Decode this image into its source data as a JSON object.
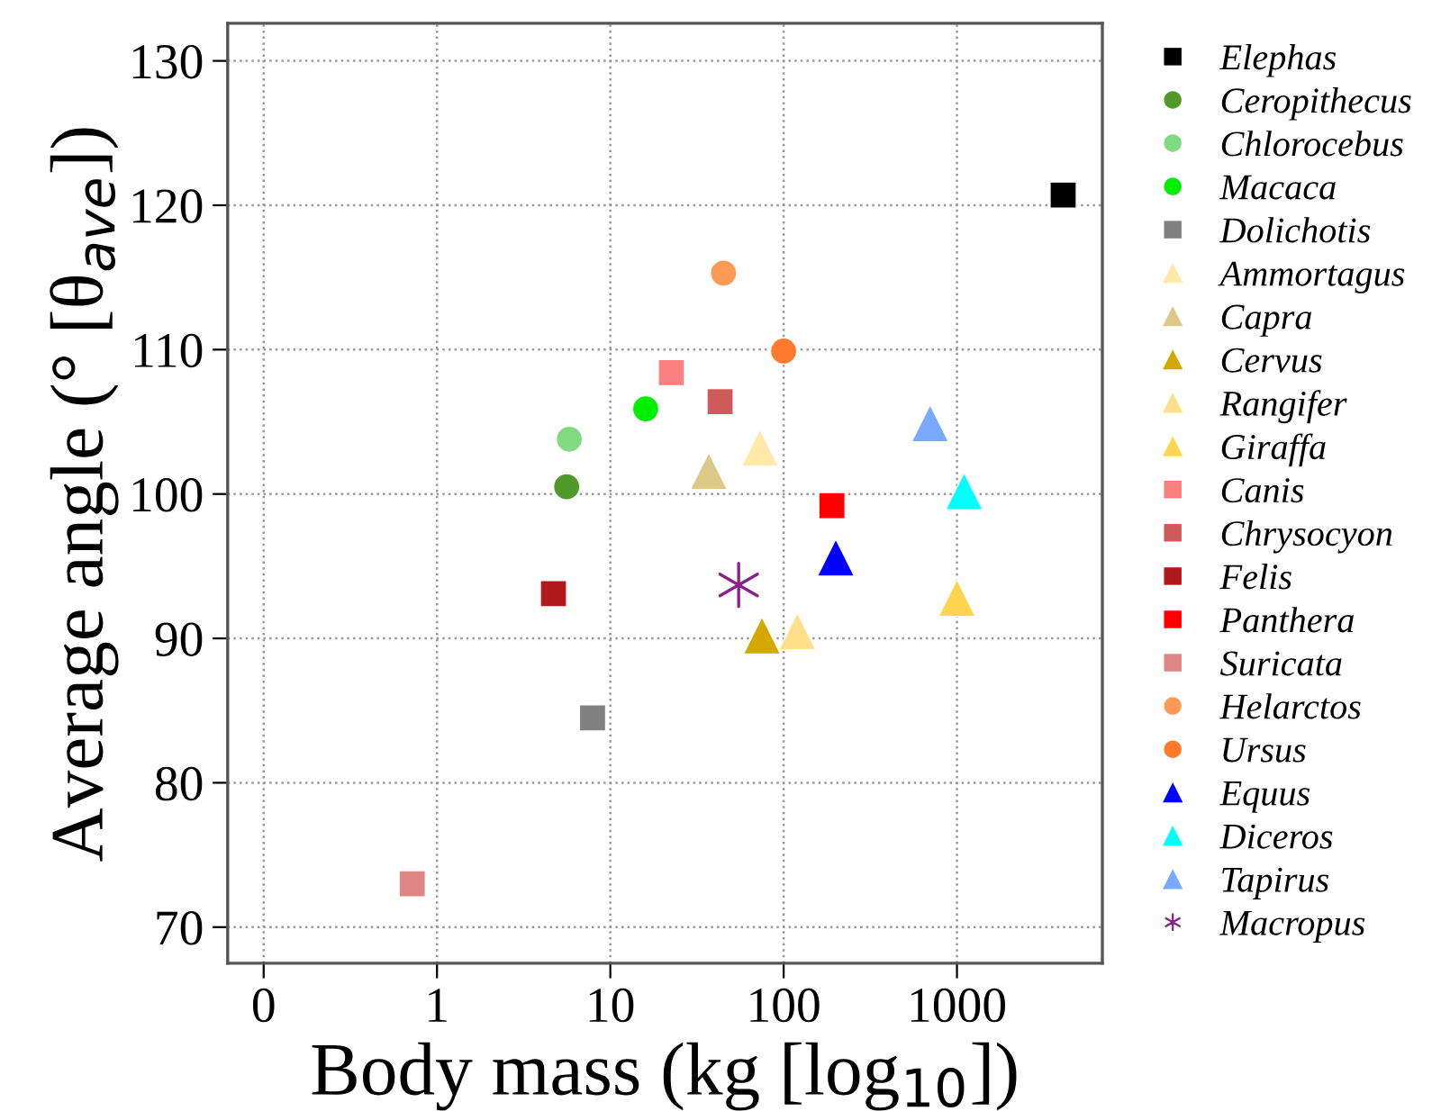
{
  "chart_data": {
    "type": "scatter",
    "xlabel": "Body mass (kg [log$_{10}$])",
    "ylabel": "Average angle (° [θ$_{ave}$])",
    "log": "x",
    "xlim": [
      0.062,
      6900
    ],
    "xticks": [
      {
        "value": 0.1,
        "label": "0"
      },
      1,
      10,
      100,
      1000
    ],
    "ylim": [
      67.5,
      132.6
    ],
    "yticks": [
      70,
      80,
      90,
      100,
      110,
      120,
      130
    ],
    "grid": true,
    "legend": "right",
    "series": [
      {
        "name": "Elephas",
        "color": "#000000",
        "marker": "square",
        "x": [
          4100
        ],
        "values": [
          120.7
        ]
      },
      {
        "name": "Ceropithecus",
        "color": "#4f9a2a",
        "marker": "circle",
        "x": [
          5.6
        ],
        "values": [
          100.5
        ]
      },
      {
        "name": "Chlorocebus",
        "color": "#80da80",
        "marker": "circle",
        "x": [
          5.8
        ],
        "values": [
          103.8
        ]
      },
      {
        "name": "Macaca",
        "color": "#00ee00",
        "marker": "circle",
        "x": [
          16
        ],
        "values": [
          105.9
        ]
      },
      {
        "name": "Dolichotis",
        "color": "#808080",
        "marker": "square",
        "x": [
          7.9
        ],
        "values": [
          84.5
        ]
      },
      {
        "name": "Ammortagus",
        "color": "#ffe9a8",
        "marker": "triangle",
        "x": [
          73
        ],
        "values": [
          103.2
        ]
      },
      {
        "name": "Capra",
        "color": "#dcc98a",
        "marker": "triangle",
        "x": [
          37
        ],
        "values": [
          101.6
        ]
      },
      {
        "name": "Cervus",
        "color": "#d4a800",
        "marker": "triangle",
        "x": [
          75
        ],
        "values": [
          90.2
        ]
      },
      {
        "name": "Rangifer",
        "color": "#ffe08a",
        "marker": "triangle",
        "x": [
          120
        ],
        "values": [
          90.5
        ]
      },
      {
        "name": "Giraffa",
        "color": "#ffd54f",
        "marker": "triangle",
        "x": [
          1000
        ],
        "values": [
          92.8
        ]
      },
      {
        "name": "Canis",
        "color": "#fa8080",
        "marker": "square",
        "x": [
          22.5
        ],
        "values": [
          108.4
        ]
      },
      {
        "name": "Chrysocyon",
        "color": "#d05a5a",
        "marker": "square",
        "x": [
          43
        ],
        "values": [
          106.4
        ]
      },
      {
        "name": "Felis",
        "color": "#b01a1a",
        "marker": "square",
        "x": [
          4.7
        ],
        "values": [
          93.1
        ]
      },
      {
        "name": "Panthera",
        "color": "#ff0000",
        "marker": "square",
        "x": [
          190
        ],
        "values": [
          99.2
        ]
      },
      {
        "name": "Suricata",
        "color": "#de8585",
        "marker": "square",
        "x": [
          0.72
        ],
        "values": [
          73.0
        ]
      },
      {
        "name": "Helarctos",
        "color": "#ff9a55",
        "marker": "circle",
        "x": [
          45
        ],
        "values": [
          115.3
        ]
      },
      {
        "name": "Ursus",
        "color": "#ff7a2a",
        "marker": "circle",
        "x": [
          100
        ],
        "values": [
          109.9
        ]
      },
      {
        "name": "Equus",
        "color": "#0000ff",
        "marker": "triangle",
        "x": [
          200
        ],
        "values": [
          95.6
        ]
      },
      {
        "name": "Diceros",
        "color": "#00ffff",
        "marker": "triangle",
        "x": [
          1100
        ],
        "values": [
          100.2
        ]
      },
      {
        "name": "Tapirus",
        "color": "#7aaaff",
        "marker": "triangle",
        "x": [
          700
        ],
        "values": [
          104.9
        ]
      },
      {
        "name": "Macropus",
        "color": "#882288",
        "marker": "cross",
        "x": [
          55
        ],
        "values": [
          93.7
        ]
      }
    ]
  }
}
